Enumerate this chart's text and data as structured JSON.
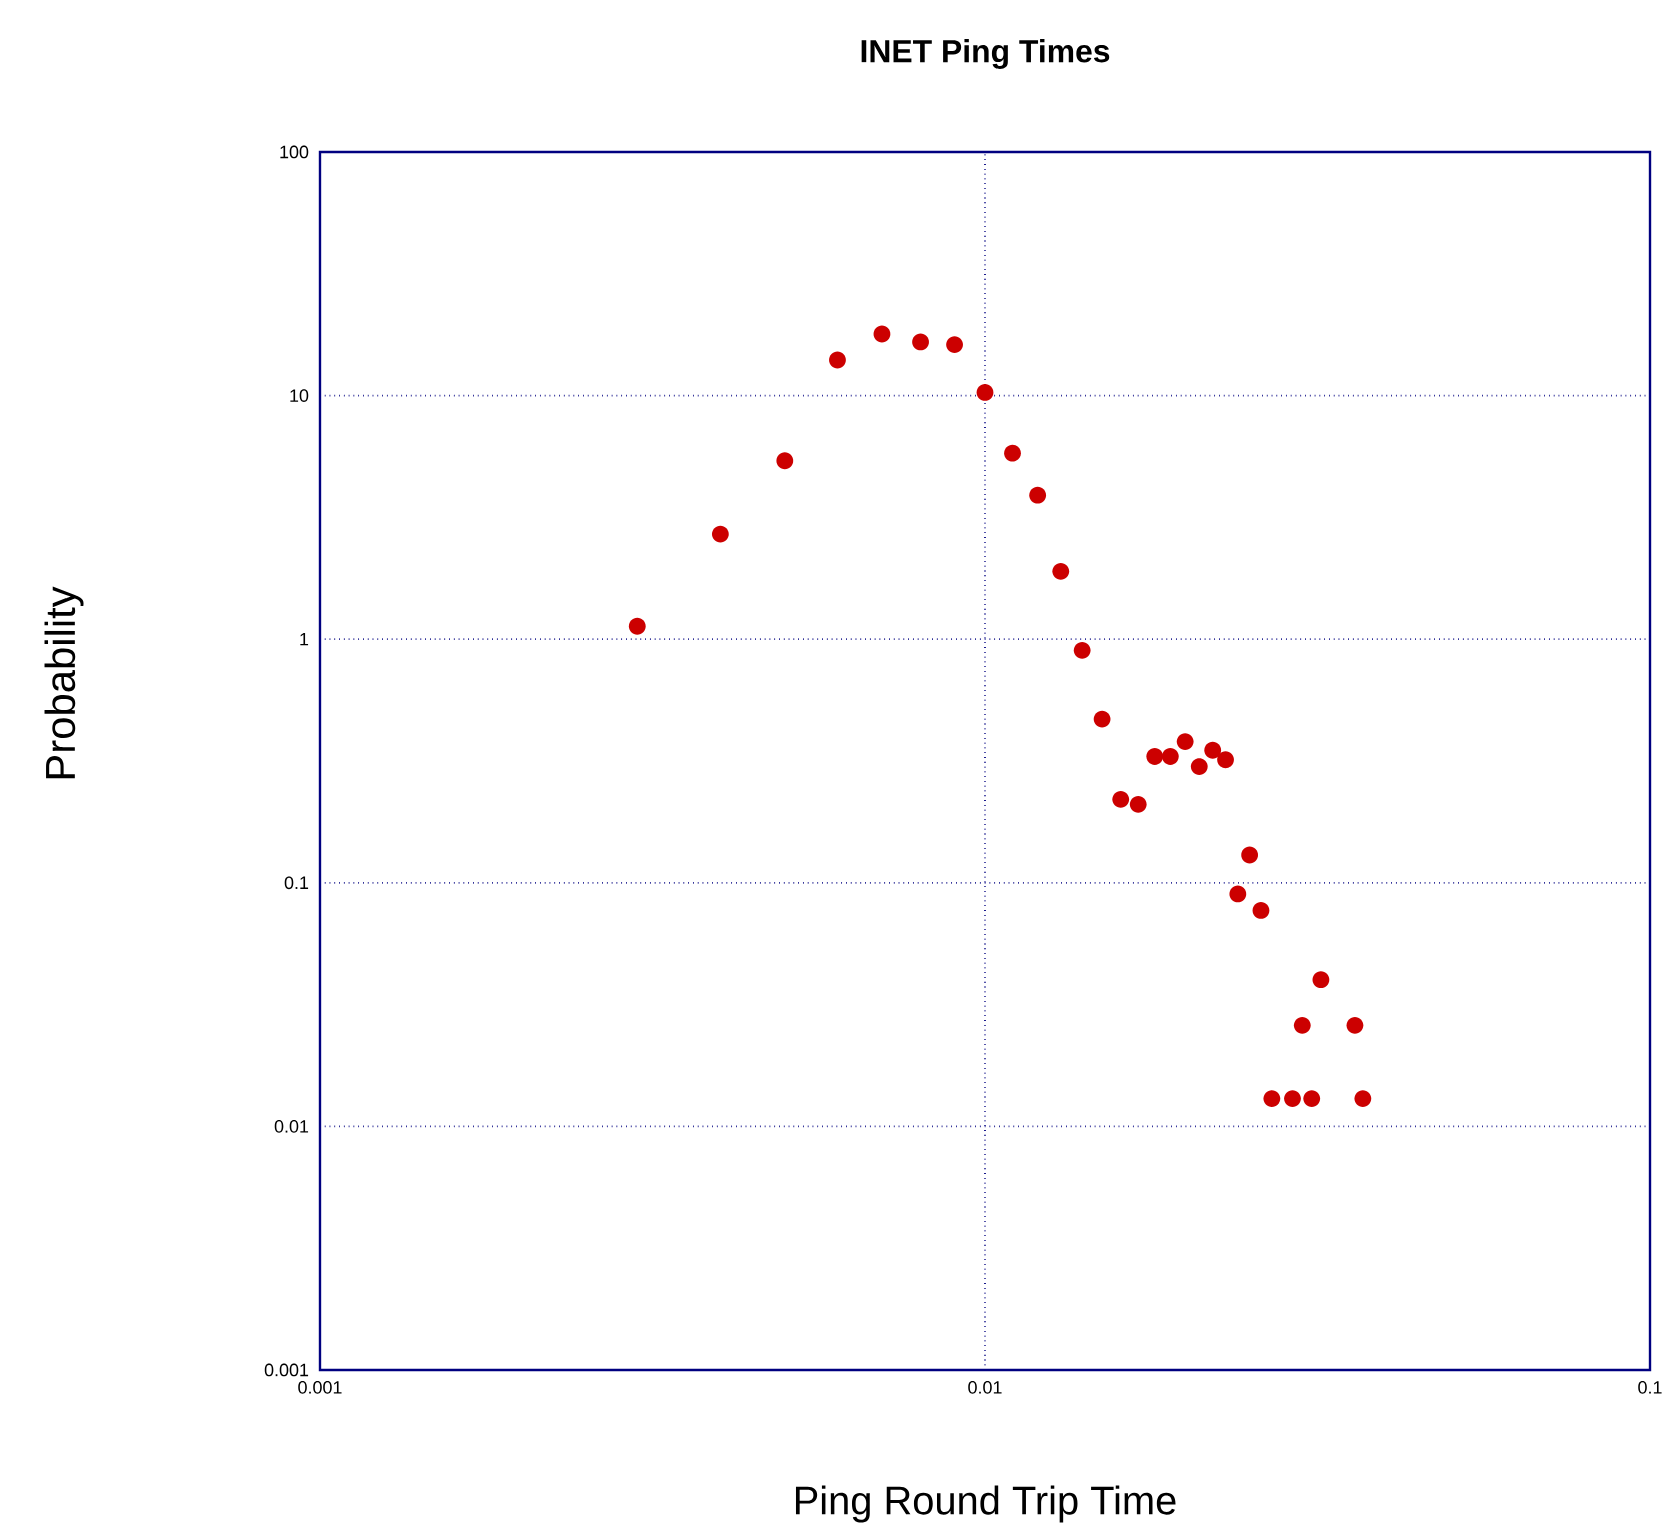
{
  "chart_data": {
    "type": "scatter",
    "title": "INET Ping Times",
    "xlabel": "Ping Round Trip Time",
    "ylabel": "Probability",
    "log": "xy",
    "grid": true,
    "marker": "circle",
    "xlim": [
      0.001,
      0.1
    ],
    "ylim": [
      0.001,
      100
    ],
    "xticks": [
      0.001,
      0.01,
      0.1
    ],
    "yticks": [
      0.001,
      0.01,
      0.1,
      1,
      10,
      100
    ],
    "series": [
      {
        "color": "#cc0000",
        "x": [
          0.003,
          0.004,
          0.005,
          0.006,
          0.007,
          0.008,
          0.009,
          0.01,
          0.011,
          0.012,
          0.013,
          0.014,
          0.015,
          0.016,
          0.017,
          0.018,
          0.019,
          0.02,
          0.021,
          0.022,
          0.023,
          0.024,
          0.025,
          0.026,
          0.027,
          0.029,
          0.03,
          0.031,
          0.032,
          0.036,
          0.037
        ],
        "values": [
          1.13,
          2.7,
          5.4,
          14,
          17.9,
          16.6,
          16.2,
          10.3,
          5.8,
          3.9,
          1.9,
          0.9,
          0.47,
          0.22,
          0.21,
          0.33,
          0.33,
          0.38,
          0.3,
          0.35,
          0.32,
          0.09,
          0.13,
          0.077,
          0.013,
          0.013,
          0.026,
          0.013,
          0.04,
          0.026,
          0.013
        ]
      }
    ]
  }
}
